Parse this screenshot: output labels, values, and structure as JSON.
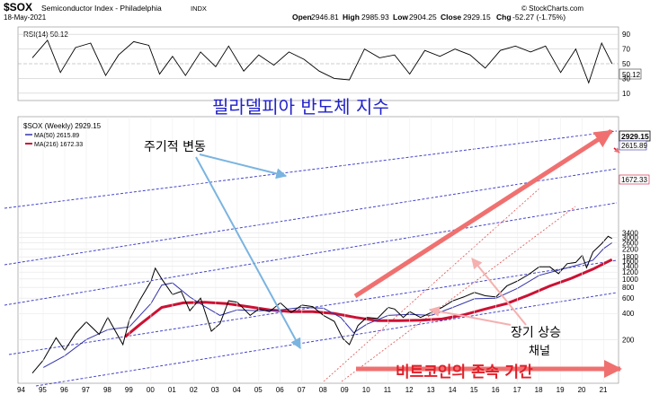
{
  "header": {
    "symbol": "$SOX",
    "name": "Semiconductor Index - Philadelphia",
    "exchange": "INDX",
    "date": "18-May-2021",
    "open_label": "Open",
    "open": "2946.81",
    "high_label": "High",
    "high": "2985.93",
    "low_label": "Low",
    "low": "2904.25",
    "close_label": "Close",
    "close": "2929.15",
    "chg_label": "Chg",
    "chg": "-52.27 (-1.75%)",
    "copyright": "© StockCharts.com"
  },
  "rsi": {
    "label": "RSI(14) 50.12",
    "current": 50.12,
    "current_label": "50.12",
    "levels": [
      "90",
      "70",
      "50",
      "30",
      "10"
    ]
  },
  "main_legend": {
    "title": "$SOX (Weekly) 2929.15",
    "ma50": "MA(50) 2615.89",
    "ma216": "MA(216) 1672.33"
  },
  "price_tags": {
    "close": "2929.15",
    "ma50": "2615.89",
    "ma216": "1672.33"
  },
  "annotations": {
    "title": "필라델피아 반도체 지수",
    "cyclical": "주기적 변동",
    "long_term_line1": "장기 상승",
    "long_term_line2": "채널",
    "bitcoin": "비트코인의 존속 기간"
  },
  "colors": {
    "price": "#000000",
    "ma50": "#3333aa",
    "ma216": "#cc1133",
    "channel": "#4444cc",
    "title_text": "#2222cc",
    "bitcoin_text": "#e0202a",
    "arrow_blue": "#7ab4e0",
    "arrow_red": "#f07070"
  },
  "chart_data": {
    "type": "line",
    "title": "$SOX (Weekly) 2929.15",
    "scale": "log",
    "y_ticks": [
      "3400",
      "3000",
      "2600",
      "2200",
      "1800",
      "1600",
      "1400",
      "1200",
      "1000",
      "800",
      "600",
      "400",
      "200"
    ],
    "x_ticks": [
      "94",
      "95",
      "96",
      "97",
      "98",
      "99",
      "00",
      "01",
      "02",
      "03",
      "04",
      "05",
      "06",
      "07",
      "08",
      "09",
      "10",
      "11",
      "12",
      "13",
      "14",
      "15",
      "16",
      "17",
      "18",
      "19",
      "20",
      "21"
    ],
    "series": [
      {
        "name": "$SOX",
        "x": [
          1994.5,
          1995.0,
          1995.6,
          1996.0,
          1996.5,
          1997.0,
          1997.6,
          1998.0,
          1998.7,
          1999.0,
          1999.5,
          2000.0,
          2000.2,
          2000.5,
          2001.0,
          2001.4,
          2001.8,
          2002.3,
          2002.8,
          2003.2,
          2003.6,
          2004.0,
          2004.6,
          2005.0,
          2005.5,
          2006.0,
          2006.5,
          2007.0,
          2007.5,
          2008.0,
          2008.5,
          2008.9,
          2009.2,
          2009.6,
          2010.0,
          2010.5,
          2011.0,
          2011.3,
          2011.7,
          2012.0,
          2012.5,
          2013.0,
          2013.5,
          2014.0,
          2014.5,
          2015.0,
          2015.5,
          2016.0,
          2016.5,
          2017.0,
          2017.5,
          2018.0,
          2018.5,
          2018.9,
          2019.3,
          2019.7,
          2020.0,
          2020.2,
          2020.5,
          2020.9,
          2021.2,
          2021.38
        ],
        "values": [
          82,
          115,
          210,
          150,
          235,
          320,
          230,
          360,
          175,
          340,
          580,
          940,
          1330,
          1000,
          660,
          720,
          430,
          600,
          250,
          305,
          560,
          540,
          380,
          450,
          420,
          530,
          410,
          500,
          480,
          380,
          325,
          205,
          175,
          290,
          360,
          350,
          470,
          450,
          360,
          420,
          360,
          410,
          470,
          560,
          620,
          700,
          640,
          620,
          830,
          950,
          1120,
          1380,
          1380,
          1150,
          1500,
          1550,
          1870,
          1350,
          2050,
          2550,
          3100,
          2929
        ]
      },
      {
        "name": "MA(50)",
        "x": [
          1995.0,
          1996.0,
          1997.0,
          1998.0,
          1999.0,
          2000.0,
          2000.5,
          2001.0,
          2001.8,
          2002.5,
          2003.2,
          2004.0,
          2005.0,
          2006.0,
          2007.0,
          2008.0,
          2008.8,
          2009.4,
          2010.0,
          2011.0,
          2012.0,
          2013.0,
          2014.0,
          2015.0,
          2016.0,
          2017.0,
          2018.0,
          2019.0,
          2020.0,
          2020.5,
          2021.0,
          2021.38
        ],
        "values": [
          95,
          130,
          200,
          260,
          280,
          520,
          850,
          900,
          620,
          480,
          380,
          440,
          430,
          440,
          470,
          460,
          360,
          240,
          300,
          380,
          390,
          380,
          470,
          590,
          600,
          780,
          1100,
          1280,
          1500,
          1650,
          2250,
          2615.89
        ]
      },
      {
        "name": "MA(216)",
        "x": [
          1998.8,
          1999.5,
          2000.5,
          2001.5,
          2002.5,
          2003.5,
          2004.5,
          2005.5,
          2006.5,
          2007.5,
          2008.5,
          2009.5,
          2010.5,
          2011.5,
          2012.5,
          2013.5,
          2014.5,
          2015.5,
          2016.5,
          2017.5,
          2018.5,
          2019.5,
          2020.5,
          2021.38
        ],
        "values": [
          215,
          300,
          470,
          530,
          540,
          520,
          480,
          440,
          420,
          420,
          400,
          360,
          330,
          330,
          335,
          345,
          385,
          450,
          520,
          650,
          830,
          1020,
          1300,
          1672.33
        ]
      }
    ],
    "rsi_series": {
      "name": "RSI(14)",
      "x": [
        1994.5,
        1995.2,
        1995.8,
        1996.5,
        1997.2,
        1997.9,
        1998.5,
        1999.2,
        1999.9,
        2000.4,
        2001.0,
        2001.6,
        2002.3,
        2003.0,
        2003.6,
        2004.3,
        2005.0,
        2005.7,
        2006.4,
        2007.1,
        2007.8,
        2008.5,
        2009.2,
        2009.9,
        2010.6,
        2011.3,
        2012.0,
        2012.7,
        2013.4,
        2014.1,
        2014.8,
        2015.5,
        2016.2,
        2016.9,
        2017.6,
        2018.3,
        2019.0,
        2019.7,
        2020.3,
        2020.9,
        2021.38
      ],
      "values": [
        58,
        82,
        38,
        72,
        78,
        34,
        62,
        80,
        75,
        36,
        60,
        34,
        66,
        46,
        74,
        40,
        62,
        48,
        66,
        56,
        40,
        30,
        28,
        70,
        58,
        62,
        36,
        68,
        60,
        70,
        62,
        44,
        68,
        74,
        66,
        74,
        38,
        70,
        24,
        78,
        50.12
      ]
    },
    "rsi_levels": [
      90,
      70,
      50,
      30,
      10
    ]
  }
}
